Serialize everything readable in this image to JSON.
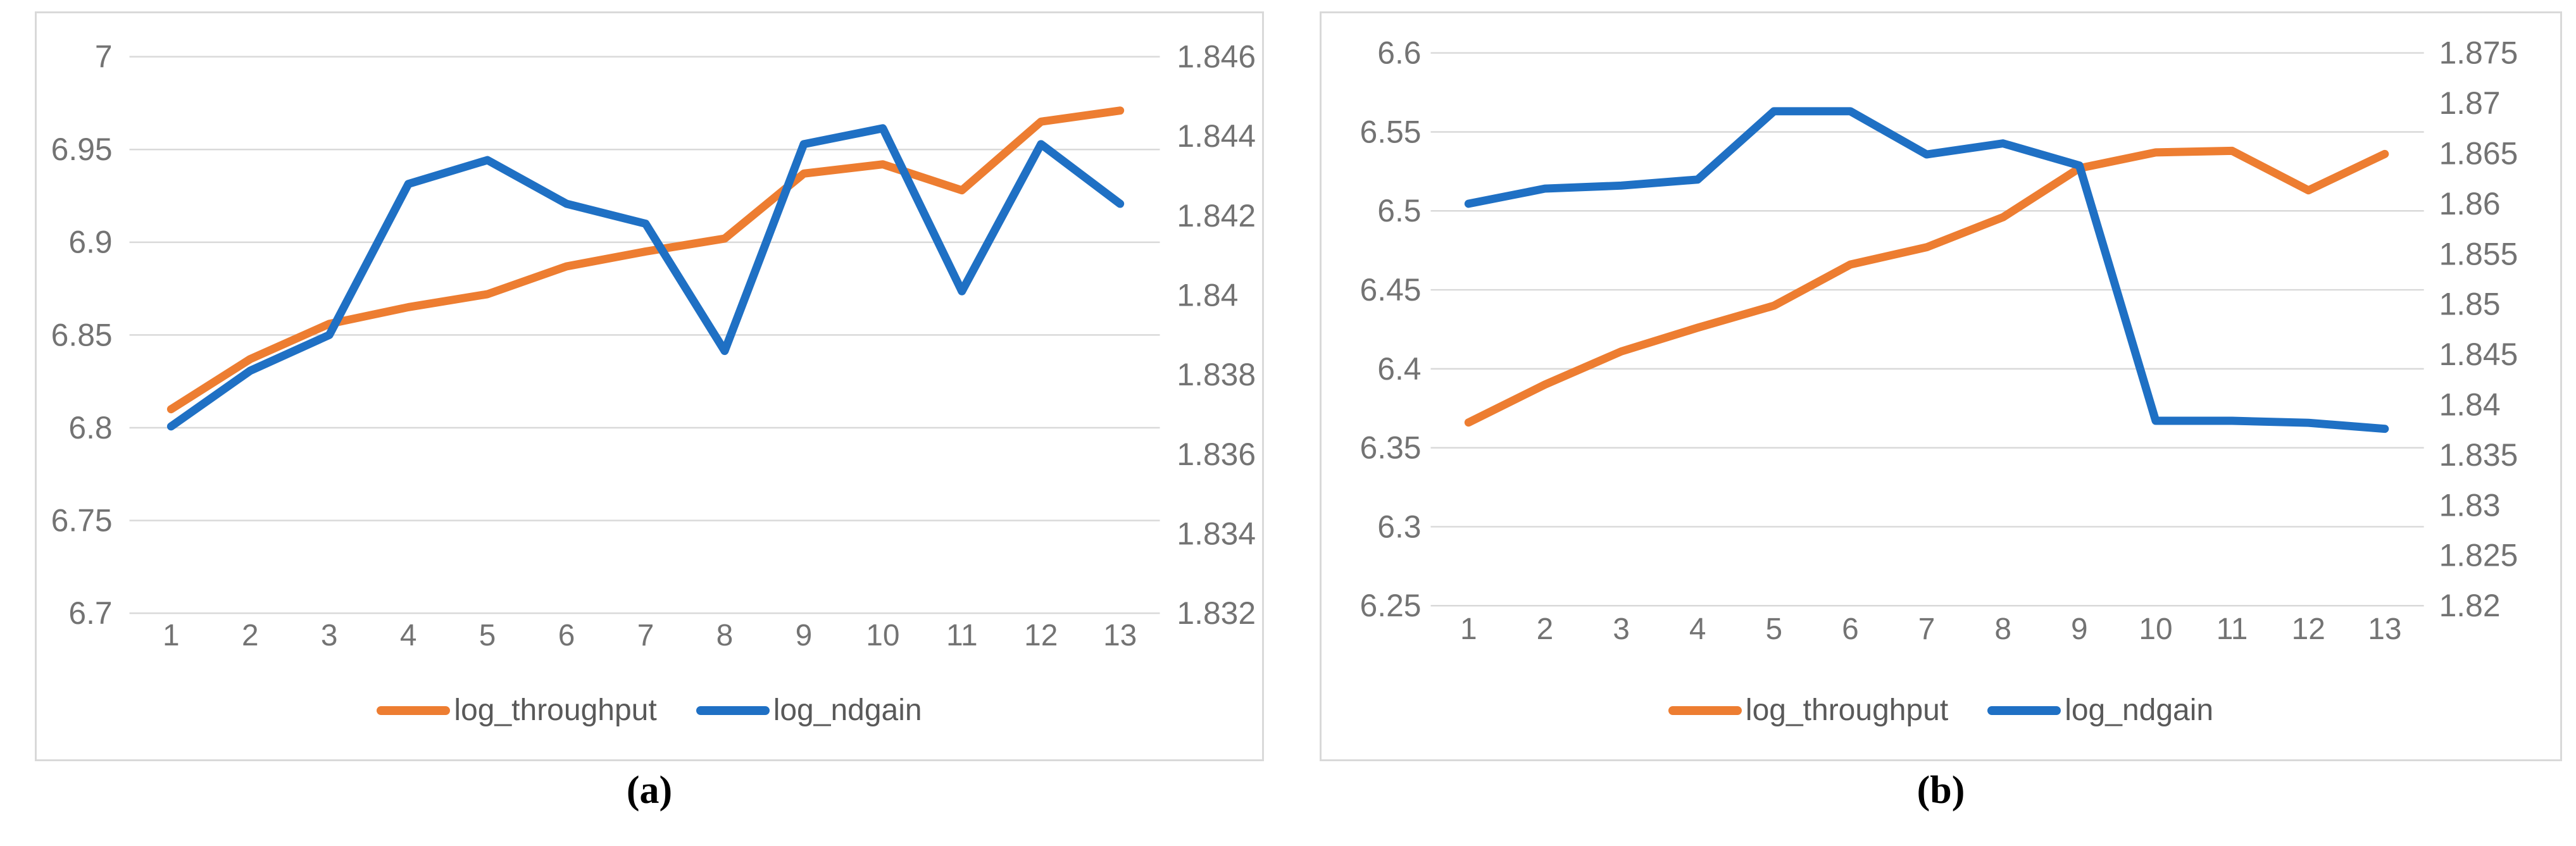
{
  "figure": {
    "panels": [
      {
        "caption": "(a)"
      },
      {
        "caption": "(b)"
      }
    ]
  },
  "chart_data": [
    {
      "type": "line",
      "caption": "(a)",
      "x_labels": [
        "1",
        "2",
        "3",
        "4",
        "5",
        "6",
        "7",
        "8",
        "9",
        "10",
        "11",
        "12",
        "13"
      ],
      "grid": true,
      "legend_position": "bottom",
      "left_axis": {
        "min": 6.7,
        "max": 7.0,
        "tick_labels": [
          "7",
          "6.95",
          "6.9",
          "6.85",
          "6.8",
          "6.75",
          "6.7"
        ]
      },
      "right_axis": {
        "min": 1.832,
        "max": 1.846,
        "tick_labels": [
          "1.846",
          "1.844",
          "1.842",
          "1.84",
          "1.838",
          "1.836",
          "1.834",
          "1.832"
        ]
      },
      "series": [
        {
          "name": "log_throughput",
          "axis": "left",
          "color": "#ED7D31",
          "values": [
            6.81,
            6.837,
            6.856,
            6.865,
            6.872,
            6.887,
            6.895,
            6.902,
            6.937,
            6.942,
            6.928,
            6.965,
            6.971
          ]
        },
        {
          "name": "log_ndgain",
          "axis": "right",
          "color": "#1F70C4",
          "values": [
            1.8367,
            1.8381,
            1.839,
            1.8428,
            1.8434,
            1.8423,
            1.8418,
            1.8386,
            1.8438,
            1.8442,
            1.8401,
            1.8438,
            1.8423
          ]
        }
      ]
    },
    {
      "type": "line",
      "caption": "(b)",
      "x_labels": [
        "1",
        "2",
        "3",
        "4",
        "5",
        "6",
        "7",
        "8",
        "9",
        "10",
        "11",
        "12",
        "13"
      ],
      "grid": true,
      "legend_position": "bottom",
      "left_axis": {
        "min": 6.25,
        "max": 6.6,
        "tick_labels": [
          "6.6",
          "6.55",
          "6.5",
          "6.45",
          "6.4",
          "6.35",
          "6.3",
          "6.25"
        ]
      },
      "right_axis": {
        "min": 1.82,
        "max": 1.875,
        "tick_labels": [
          "1.875",
          "1.87",
          "1.865",
          "1.86",
          "1.855",
          "1.85",
          "1.845",
          "1.84",
          "1.835",
          "1.83",
          "1.825",
          "1.82"
        ]
      },
      "series": [
        {
          "name": "log_throughput",
          "axis": "left",
          "color": "#ED7D31",
          "values": [
            6.366,
            6.39,
            6.411,
            6.426,
            6.44,
            6.466,
            6.477,
            6.496,
            6.527,
            6.537,
            6.538,
            6.513,
            6.536
          ]
        },
        {
          "name": "log_ndgain",
          "axis": "right",
          "color": "#1F70C4",
          "values": [
            1.86,
            1.8615,
            1.8618,
            1.8624,
            1.8692,
            1.8692,
            1.8649,
            1.866,
            1.8638,
            1.8384,
            1.8384,
            1.8382,
            1.8376
          ]
        }
      ]
    }
  ]
}
